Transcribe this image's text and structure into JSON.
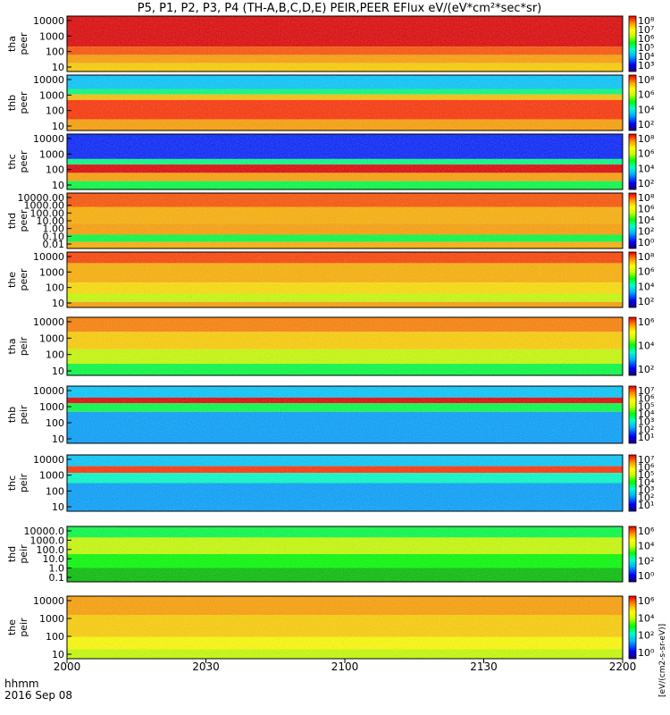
{
  "chart_data": {
    "type": "heatmap",
    "title": "P5, P1, P2, P3, P4 (TH-A,B,C,D,E) PEIR,PEER EFlux eV/(eV*cm²*sec*sr)",
    "xlabel_top": "hhmm",
    "xlabel_date": "2016 Sep 08",
    "x_ticks": [
      "2000",
      "2030",
      "2100",
      "2130",
      "2200"
    ],
    "x_range": [
      "2000",
      "2200"
    ],
    "y_scale": "log",
    "colorbar_unit": "[eV/(cm2-s-sr-eV)]",
    "panels": [
      {
        "probe": "tha",
        "product": "peer",
        "ylabels": [
          "10000",
          "1000",
          "100",
          "10"
        ],
        "cb_ticks": [
          "10⁸",
          "10⁷",
          "10⁶",
          "10⁵",
          "10⁴",
          "10³"
        ]
      },
      {
        "probe": "thb",
        "product": "peer",
        "ylabels": [
          "10000",
          "1000",
          "100",
          "10"
        ],
        "cb_ticks": [
          "10⁸",
          "10⁶",
          "10⁴",
          "10²"
        ]
      },
      {
        "probe": "thc",
        "product": "peer",
        "ylabels": [
          "10000",
          "1000",
          "100",
          "10"
        ],
        "cb_ticks": [
          "10⁸",
          "10⁶",
          "10⁴",
          "10²"
        ]
      },
      {
        "probe": "thd",
        "product": "peer",
        "ylabels": [
          "10000.00",
          "1000.00",
          "100.00",
          "10.00",
          "1.00",
          "0.10",
          "0.01"
        ],
        "cb_ticks": [
          "10⁸",
          "10⁶",
          "10⁴",
          "10²",
          "10⁰"
        ]
      },
      {
        "probe": "the",
        "product": "peer",
        "ylabels": [
          "10000",
          "1000",
          "100",
          "10"
        ],
        "cb_ticks": [
          "10⁸",
          "10⁶",
          "10⁴",
          "10²"
        ]
      },
      {
        "probe": "tha",
        "product": "peir",
        "ylabels": [
          "10000",
          "1000",
          "100",
          "10"
        ],
        "cb_ticks": [
          "10⁶",
          "10⁴",
          "10²"
        ]
      },
      {
        "probe": "thb",
        "product": "peir",
        "ylabels": [
          "10000",
          "1000",
          "100",
          "10"
        ],
        "cb_ticks": [
          "10⁷",
          "10⁶",
          "10⁵",
          "10⁴",
          "10³",
          "10²",
          "10¹"
        ]
      },
      {
        "probe": "thc",
        "product": "peir",
        "ylabels": [
          "10000",
          "1000",
          "100",
          "10"
        ],
        "cb_ticks": [
          "10⁷",
          "10⁶",
          "10⁵",
          "10⁴",
          "10³",
          "10²",
          "10¹"
        ]
      },
      {
        "probe": "thd",
        "product": "peir",
        "ylabels": [
          "10000.0",
          "1000.0",
          "100.0",
          "10.0",
          "1.0",
          "0.1"
        ],
        "cb_ticks": [
          "10⁶",
          "10⁴",
          "10²",
          "10⁰"
        ]
      },
      {
        "probe": "the",
        "product": "peir",
        "ylabels": [
          "10000",
          "1000",
          "100",
          "10"
        ],
        "cb_ticks": [
          "10⁶",
          "10⁴",
          "10²",
          "10⁰"
        ]
      }
    ],
    "colormap": [
      "#1a0070",
      "#0000ff",
      "#00b4ff",
      "#00ffc8",
      "#00ff00",
      "#c8ff00",
      "#ffff00",
      "#ffa000",
      "#ff3000",
      "#e00000"
    ]
  }
}
